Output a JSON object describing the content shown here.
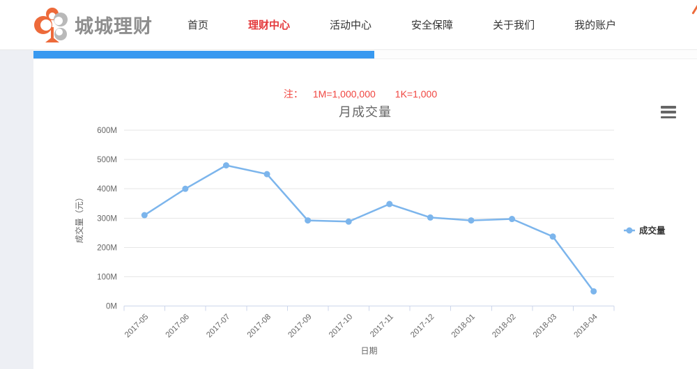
{
  "header": {
    "logo_text": "城城理财",
    "nav": [
      {
        "label": "首页",
        "active": false
      },
      {
        "label": "理财中心",
        "active": true
      },
      {
        "label": "活动中心",
        "active": false
      },
      {
        "label": "安全保障",
        "active": false
      },
      {
        "label": "关于我们",
        "active": false
      },
      {
        "label": "我的账户",
        "active": false
      }
    ]
  },
  "progress": {
    "fill_percent": 51.4,
    "fill_color": "#3899f0"
  },
  "note": {
    "prefix": "注：",
    "item1": "1M=1,000,000",
    "item2": "1K=1,000",
    "color": "#f0453f"
  },
  "chart_data": {
    "type": "line",
    "title": "月成交量",
    "xlabel": "日期",
    "ylabel": "成交量（元）",
    "categories": [
      "2017-05",
      "2017-06",
      "2017-07",
      "2017-08",
      "2017-09",
      "2017-10",
      "2017-11",
      "2017-12",
      "2018-01",
      "2018-02",
      "2018-03",
      "2018-04"
    ],
    "series": [
      {
        "name": "成交量",
        "color": "#7cb5ec",
        "values": [
          310,
          400,
          480,
          450,
          292,
          288,
          348,
          302,
          292,
          297,
          237,
          50
        ]
      }
    ],
    "unit": "M",
    "ylim": [
      0,
      600
    ],
    "yticks": [
      0,
      100,
      200,
      300,
      400,
      500,
      600
    ],
    "grid": true,
    "legend_position": "right",
    "colors": {
      "gridline": "#e6e6e6",
      "axis_line": "#ccd6eb",
      "tick_label": "#666666",
      "axis_title": "#666666",
      "legend_text": "#333333"
    }
  }
}
